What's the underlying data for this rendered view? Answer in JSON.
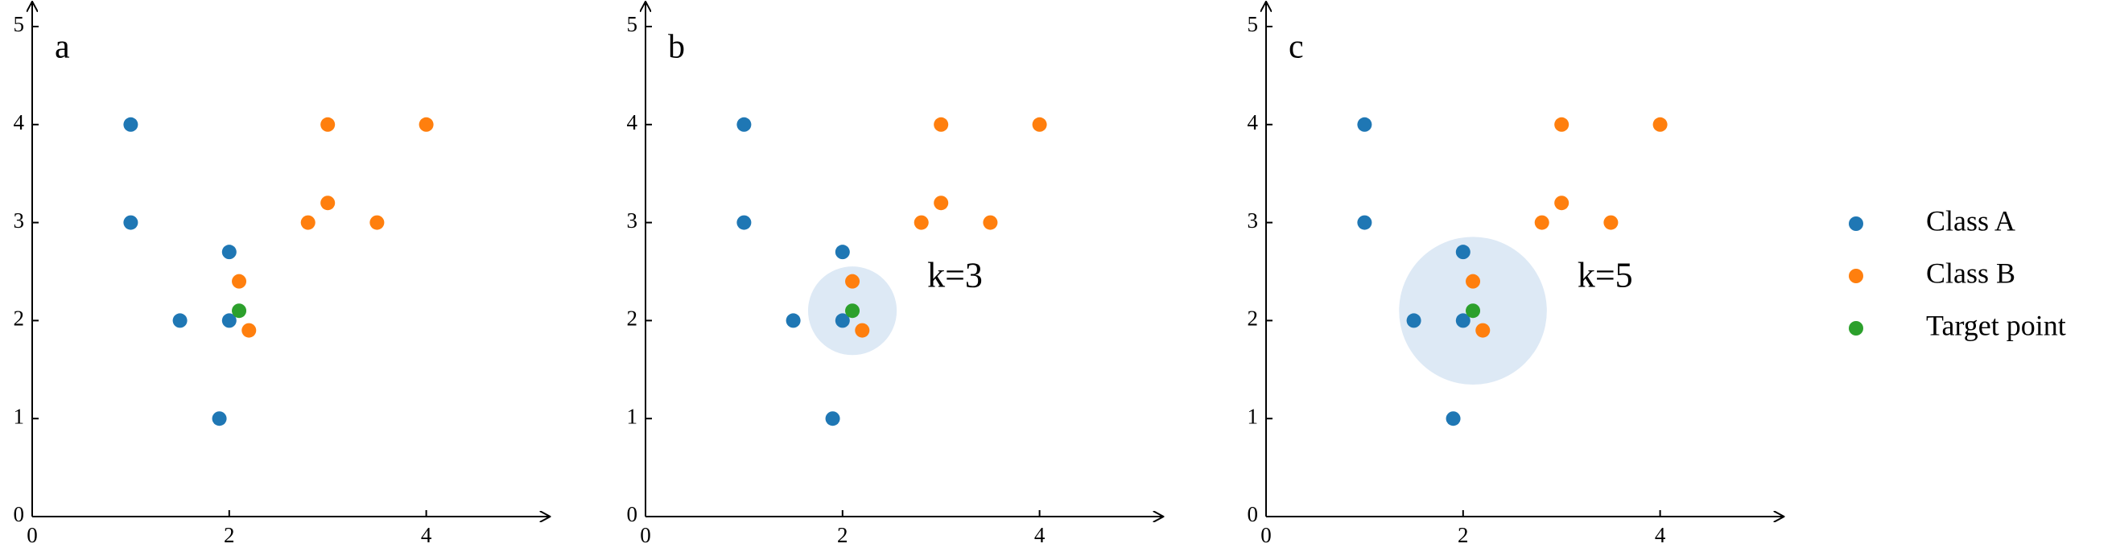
{
  "chart_data": [
    {
      "type": "scatter",
      "label": "a",
      "xlim": [
        0,
        5.25
      ],
      "ylim": [
        0,
        5.1
      ],
      "xticks": [
        0,
        2,
        4
      ],
      "yticks": [
        0,
        1,
        2,
        3,
        4,
        5
      ],
      "legend": "right",
      "series": [
        {
          "name": "Class A",
          "color": "#1f77b4",
          "x": [
            1,
            1,
            2,
            1.5,
            2,
            1.9
          ],
          "values": [
            4,
            3,
            2.7,
            2,
            2,
            1
          ]
        },
        {
          "name": "Class B",
          "color": "#ff7f0e",
          "x": [
            3,
            4,
            3,
            2.8,
            3.5,
            2.1,
            2.2
          ],
          "values": [
            4,
            4,
            3.2,
            3,
            3,
            2.4,
            1.9
          ]
        },
        {
          "name": "Target point",
          "color": "#2ca02c",
          "x": [
            2.1
          ],
          "values": [
            2.1
          ]
        }
      ]
    },
    {
      "type": "scatter",
      "label": "b",
      "xlim": [
        0,
        5.25
      ],
      "ylim": [
        0,
        5.1
      ],
      "xticks": [
        0,
        2,
        4
      ],
      "yticks": [
        0,
        1,
        2,
        3,
        4,
        5
      ],
      "annotation": "k=3",
      "circle": {
        "center": [
          2.1,
          2.1
        ],
        "radius": 0.45,
        "color": "#dde9f5"
      },
      "series": [
        {
          "color": "#1f77b4",
          "x": [
            1,
            1,
            2,
            1.5,
            2,
            1.9
          ],
          "values": [
            4,
            3,
            2.7,
            2,
            2,
            1
          ]
        },
        {
          "color": "#ff7f0e",
          "x": [
            3,
            4,
            3,
            2.8,
            3.5,
            2.1,
            2.2
          ],
          "values": [
            4,
            4,
            3.2,
            3,
            3,
            2.4,
            1.9
          ]
        },
        {
          "color": "#2ca02c",
          "x": [
            2.1
          ],
          "values": [
            2.1
          ]
        }
      ]
    },
    {
      "type": "scatter",
      "label": "c",
      "xlim": [
        0,
        5.25
      ],
      "ylim": [
        0,
        5.1
      ],
      "xticks": [
        0,
        2,
        4
      ],
      "yticks": [
        0,
        1,
        2,
        3,
        4,
        5
      ],
      "annotation": "k=5",
      "circle": {
        "center": [
          2.1,
          2.1
        ],
        "radius": 0.75,
        "color": "#dde9f5"
      },
      "series": [
        {
          "color": "#1f77b4",
          "x": [
            1,
            1,
            2,
            1.5,
            2,
            1.9
          ],
          "values": [
            4,
            3,
            2.7,
            2,
            2,
            1
          ]
        },
        {
          "color": "#ff7f0e",
          "x": [
            3,
            4,
            3,
            2.8,
            3.5,
            2.1,
            2.2
          ],
          "values": [
            4,
            4,
            3.2,
            3,
            3,
            2.4,
            1.9
          ]
        },
        {
          "color": "#2ca02c",
          "x": [
            2.1
          ],
          "values": [
            2.1
          ]
        }
      ]
    }
  ]
}
